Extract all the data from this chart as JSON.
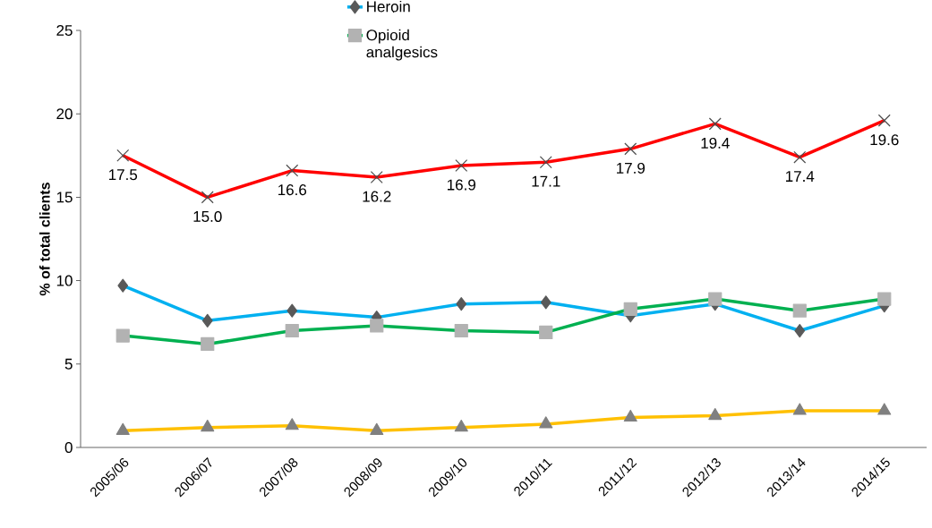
{
  "chart_data": {
    "type": "line",
    "ylabel": "**% of total clients**",
    "categories": [
      "2005/06",
      "2006/07",
      "2007/08",
      "2008/09",
      "2009/10",
      "2010/11",
      "2011/12",
      "2012/13",
      "2013/14",
      "2014/15"
    ],
    "series": [
      {
        "color": "#ff0000",
        "marker": "cross",
        "values": [
          17.5,
          15.0,
          16.6,
          16.2,
          16.9,
          17.1,
          17.9,
          19.4,
          17.4,
          19.6
        ],
        "value_labels": [
          "17.5",
          "15.0",
          "16.6",
          "16.2",
          "16.9",
          "17.1",
          "17.9",
          "19.4",
          "17.4",
          "19.6"
        ]
      },
      {
        "name": "Heroin",
        "color": "#00b0f0",
        "marker": "diamond",
        "values": [
          9.7,
          7.6,
          8.2,
          7.8,
          8.6,
          8.7,
          7.9,
          8.6,
          7.0,
          8.5
        ]
      },
      {
        "name": "Opioid analgesics",
        "color": "#00b050",
        "marker": "square",
        "values": [
          6.7,
          6.2,
          7.0,
          7.3,
          7.0,
          6.9,
          8.3,
          8.9,
          8.2,
          8.9
        ]
      },
      {
        "color": "#ffc000",
        "marker": "triangle",
        "values": [
          1.0,
          1.2,
          1.3,
          1.0,
          1.2,
          1.4,
          1.8,
          1.9,
          2.2,
          2.2
        ]
      }
    ],
    "ylim": [
      0,
      25
    ],
    "yticks": [
      0,
      5,
      10,
      15,
      20,
      25
    ],
    "legend": "top",
    "grid": false
  }
}
